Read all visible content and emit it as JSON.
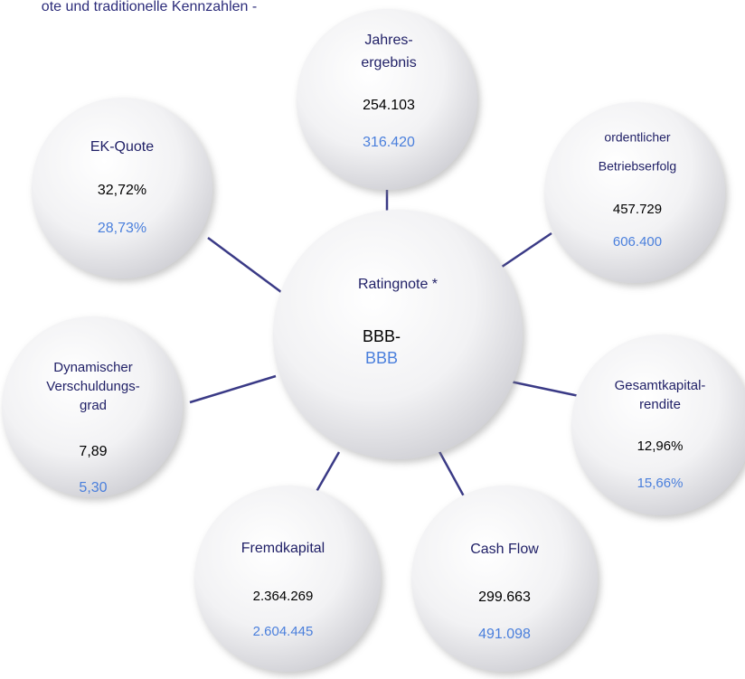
{
  "header": {
    "title": "ote und traditionelle Kennzahlen -"
  },
  "center": {
    "label": "Ratingnote  *",
    "value": "BBB-",
    "previous": "BBB"
  },
  "nodes": [
    {
      "label_lines": [
        "Jahres-",
        "ergebnis"
      ],
      "value": "254.103",
      "previous": "316.420"
    },
    {
      "label_lines": [
        "EK-Quote"
      ],
      "value": "32,72%",
      "previous": "28,73%"
    },
    {
      "label_lines": [
        "ordentlicher",
        "Betriebserfolg"
      ],
      "value": "457.729",
      "previous": "606.400"
    },
    {
      "label_lines": [
        "Dynamischer",
        "Verschuldungs-",
        "grad"
      ],
      "value": "7,89",
      "previous": "5,30"
    },
    {
      "label_lines": [
        "Gesamtkapital-",
        "rendite"
      ],
      "value": "12,96%",
      "previous": "15,66%"
    },
    {
      "label_lines": [
        "Fremdkapital"
      ],
      "value": "2.364.269",
      "previous": "2.604.445"
    },
    {
      "label_lines": [
        "Cash Flow"
      ],
      "value": "299.663",
      "previous": "491.098"
    }
  ]
}
